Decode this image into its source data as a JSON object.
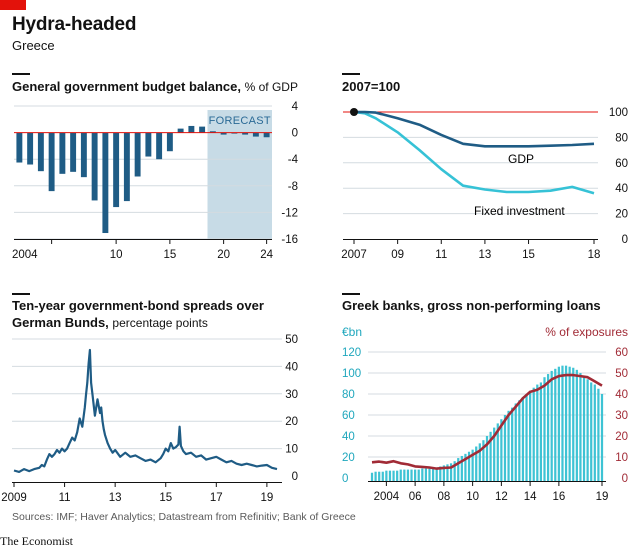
{
  "header": {
    "title": "Hydra-headed",
    "subtitle": "Greece"
  },
  "footer": {
    "source": "Sources: IMF; Haver Analytics; Datastream from Refinitiv; Bank of Greece",
    "brand": "The Economist"
  },
  "colors": {
    "dark_blue": "#1f5c85",
    "light_blue": "#36c2d6",
    "bar_blue": "#3ec3d4",
    "maroon": "#a12b36",
    "red": "#e3120b",
    "forecast": "#c7dbe6",
    "grid": "#d4dbe0"
  },
  "chart_data": [
    {
      "id": "budget",
      "type": "bar",
      "title": "General government budget balance,",
      "subtitle": "% of GDP",
      "forecast_label": "FORECAST",
      "forecast_range": [
        2019,
        2024
      ],
      "x": [
        2001,
        2002,
        2003,
        2004,
        2005,
        2006,
        2007,
        2008,
        2009,
        2010,
        2011,
        2012,
        2013,
        2014,
        2015,
        2016,
        2017,
        2018,
        2019,
        2020,
        2021,
        2022,
        2023,
        2024
      ],
      "values": [
        -4.5,
        -4.8,
        -5.8,
        -8.8,
        -6.2,
        -5.9,
        -6.7,
        -10.2,
        -15.1,
        -11.2,
        -10.3,
        -6.6,
        -3.6,
        -4.0,
        -2.8,
        0.6,
        1.0,
        0.9,
        0.2,
        -0.3,
        -0.1,
        -0.3,
        -0.6,
        -0.7
      ],
      "ylim": [
        -16,
        4
      ],
      "yticks": [
        "4",
        "0",
        "-4",
        "-8",
        "-12",
        "-16"
      ],
      "ytick_values": [
        4,
        0,
        -4,
        -8,
        -12,
        -16
      ],
      "xticks": [
        "2004",
        "10",
        "15",
        "20",
        "24"
      ],
      "xtick_values": [
        2004,
        2010,
        2015,
        2020,
        2024
      ]
    },
    {
      "id": "index",
      "type": "line",
      "title": "2007=100",
      "ylim": [
        0,
        100
      ],
      "yticks": [
        "100",
        "80",
        "60",
        "40",
        "20",
        "0"
      ],
      "ytick_values": [
        100,
        80,
        60,
        40,
        20,
        0
      ],
      "xticks": [
        "2007",
        "09",
        "11",
        "13",
        "15",
        "18"
      ],
      "xtick_values": [
        2007,
        2009,
        2011,
        2013,
        2015,
        2018
      ],
      "series": [
        {
          "name": "GDP",
          "x": [
            2007,
            2007.5,
            2008,
            2009,
            2010,
            2011,
            2012,
            2013,
            2014,
            2015,
            2016,
            2017,
            2018
          ],
          "y": [
            100,
            100,
            99.5,
            95,
            90,
            82,
            75,
            73,
            73,
            73,
            73.5,
            74,
            75
          ]
        },
        {
          "name": "Fixed investment",
          "x": [
            2007,
            2007.5,
            2008,
            2009,
            2010,
            2011,
            2012,
            2013,
            2014,
            2015,
            2016,
            2017,
            2018
          ],
          "y": [
            100,
            99,
            95,
            84,
            70,
            55,
            42,
            39,
            37,
            37,
            38,
            41,
            36
          ]
        }
      ],
      "start_marker": {
        "x": 2007,
        "y": 100
      }
    },
    {
      "id": "spreads",
      "type": "line",
      "title": "Ten-year government-bond spreads over German Bunds,",
      "title_line1": "Ten-year government-bond spreads over",
      "title_line2": "German Bunds,",
      "subtitle": "percentage points",
      "ylim": [
        0,
        50
      ],
      "yticks": [
        "50",
        "40",
        "30",
        "20",
        "10",
        "0"
      ],
      "ytick_values": [
        50,
        40,
        30,
        20,
        10,
        0
      ],
      "xticks": [
        "2009",
        "11",
        "13",
        "15",
        "17",
        "19"
      ],
      "xtick_values": [
        2009,
        2011,
        2013,
        2015,
        2017,
        2019
      ],
      "series": [
        {
          "name": "",
          "x": [
            2009.0,
            2009.2,
            2009.4,
            2009.6,
            2009.8,
            2010.0,
            2010.1,
            2010.2,
            2010.3,
            2010.4,
            2010.5,
            2010.6,
            2010.7,
            2010.8,
            2010.9,
            2011.0,
            2011.1,
            2011.2,
            2011.3,
            2011.4,
            2011.5,
            2011.6,
            2011.7,
            2011.8,
            2011.85,
            2011.9,
            2011.95,
            2012.0,
            2012.05,
            2012.1,
            2012.2,
            2012.3,
            2012.4,
            2012.45,
            2012.5,
            2012.55,
            2012.6,
            2012.7,
            2012.8,
            2012.9,
            2013.0,
            2013.2,
            2013.4,
            2013.6,
            2013.8,
            2014.0,
            2014.2,
            2014.4,
            2014.6,
            2014.8,
            2014.9,
            2015.0,
            2015.1,
            2015.2,
            2015.3,
            2015.4,
            2015.5,
            2015.55,
            2015.6,
            2015.7,
            2015.8,
            2016.0,
            2016.2,
            2016.4,
            2016.6,
            2016.8,
            2017.0,
            2017.2,
            2017.4,
            2017.6,
            2017.8,
            2018.0,
            2018.2,
            2018.4,
            2018.6,
            2018.8,
            2019.0,
            2019.2,
            2019.4
          ],
          "y": [
            2.0,
            1.5,
            2.5,
            1.8,
            2.5,
            3.0,
            4.0,
            3.5,
            6.0,
            8.0,
            7.0,
            8.0,
            9.5,
            8.5,
            10.0,
            9.0,
            10.0,
            12.0,
            14.0,
            13.0,
            16.0,
            21.0,
            18.0,
            25.0,
            30.0,
            34.0,
            41.0,
            46.0,
            34.0,
            30.0,
            22.0,
            28.0,
            23.0,
            25.0,
            20.0,
            17.0,
            15.0,
            12.0,
            10.0,
            8.5,
            9.5,
            7.0,
            8.5,
            7.0,
            7.5,
            6.5,
            5.5,
            6.0,
            5.0,
            6.5,
            8.0,
            10.0,
            9.0,
            12.0,
            10.0,
            10.5,
            11.5,
            18.0,
            11.0,
            9.0,
            8.0,
            8.5,
            7.0,
            7.5,
            6.0,
            6.5,
            7.0,
            6.0,
            5.0,
            5.5,
            4.5,
            4.0,
            4.5,
            4.0,
            3.5,
            3.8,
            4.0,
            3.0,
            2.5
          ]
        }
      ]
    },
    {
      "id": "npl",
      "type": "bar",
      "title": "Greek banks, gross non-performing loans",
      "left_axis_label": "€bn",
      "right_axis_label": "% of exposures",
      "ylim_left": [
        0,
        120
      ],
      "ylim_right": [
        0,
        60
      ],
      "yticks_left": [
        "120",
        "100",
        "80",
        "60",
        "40",
        "20",
        "0"
      ],
      "ytick_values_left": [
        120,
        100,
        80,
        60,
        40,
        20,
        0
      ],
      "yticks_right": [
        "60",
        "50",
        "40",
        "30",
        "20",
        "10",
        "0"
      ],
      "ytick_values_right": [
        60,
        50,
        40,
        30,
        20,
        10,
        0
      ],
      "xticks": [
        "2004",
        "06",
        "08",
        "10",
        "12",
        "14",
        "16",
        "19"
      ],
      "xtick_values": [
        2004,
        2006,
        2008,
        2010,
        2012,
        2014,
        2016,
        2019
      ],
      "series": [
        {
          "name": "€bn",
          "x": [
            2003.0,
            2003.25,
            2003.5,
            2003.75,
            2004.0,
            2004.25,
            2004.5,
            2004.75,
            2005.0,
            2005.25,
            2005.5,
            2005.75,
            2006.0,
            2006.25,
            2006.5,
            2006.75,
            2007.0,
            2007.25,
            2007.5,
            2007.75,
            2008.0,
            2008.25,
            2008.5,
            2008.75,
            2009.0,
            2009.25,
            2009.5,
            2009.75,
            2010.0,
            2010.25,
            2010.5,
            2010.75,
            2011.0,
            2011.25,
            2011.5,
            2011.75,
            2012.0,
            2012.25,
            2012.5,
            2012.75,
            2013.0,
            2013.25,
            2013.5,
            2013.75,
            2014.0,
            2014.25,
            2014.5,
            2014.75,
            2015.0,
            2015.25,
            2015.5,
            2015.75,
            2016.0,
            2016.25,
            2016.5,
            2016.75,
            2017.0,
            2017.25,
            2017.5,
            2017.75,
            2018.0,
            2018.25,
            2018.5,
            2018.75,
            2019.0
          ],
          "values": [
            5,
            6,
            6,
            6,
            7,
            7,
            7,
            7,
            8,
            8,
            8,
            8,
            8,
            8,
            9,
            9,
            9,
            10,
            10,
            11,
            12,
            13,
            14,
            16,
            19,
            21,
            23,
            25,
            27,
            30,
            33,
            36,
            40,
            44,
            48,
            52,
            56,
            60,
            64,
            67,
            71,
            74,
            77,
            80,
            83,
            86,
            89,
            91,
            96,
            99,
            102,
            104,
            106,
            107,
            107,
            106,
            105,
            103,
            100,
            97,
            94,
            91,
            89,
            85,
            80
          ]
        },
        {
          "name": "% of exposures",
          "x": [
            2003.0,
            2003.5,
            2004.0,
            2004.5,
            2005.0,
            2005.5,
            2006.0,
            2006.5,
            2007.0,
            2007.5,
            2008.0,
            2008.5,
            2009.0,
            2009.5,
            2010.0,
            2010.5,
            2011.0,
            2011.5,
            2012.0,
            2012.5,
            2013.0,
            2013.5,
            2014.0,
            2014.5,
            2015.0,
            2015.5,
            2016.0,
            2016.5,
            2017.0,
            2017.5,
            2018.0,
            2018.5,
            2019.0
          ],
          "y": [
            7.5,
            7.8,
            7.3,
            8.0,
            7.0,
            6.5,
            5.5,
            5.3,
            5.0,
            4.5,
            4.8,
            5.0,
            7.0,
            9.0,
            11.0,
            13.0,
            16.0,
            20.0,
            25.0,
            30.0,
            34.0,
            38.0,
            41.0,
            42.0,
            44.0,
            47.0,
            48.5,
            49.0,
            49.0,
            48.5,
            48.0,
            46.0,
            44.0
          ]
        }
      ]
    }
  ]
}
